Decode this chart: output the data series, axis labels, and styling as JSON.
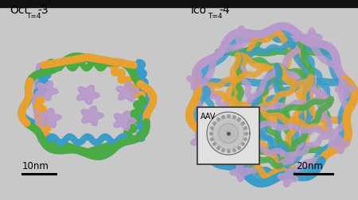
{
  "bg_color": "#c8c8c8",
  "top_bar_color": "#111111",
  "colors": {
    "green": "#4aaa44",
    "blue": "#3a9cc8",
    "orange": "#e8a030",
    "purple": "#b899cc"
  },
  "left_title": "Oct",
  "left_sub": "T=4",
  "left_suffix": "-3",
  "right_title": "Ico",
  "right_sub": "T=4",
  "right_suffix": "-4",
  "left_scale": "10nm",
  "right_scale": "20nm",
  "title_fontsize": 10,
  "sub_fontsize": 6.5,
  "scale_fontsize": 8.5,
  "aav_label": "AAV",
  "aav_fontsize": 7
}
